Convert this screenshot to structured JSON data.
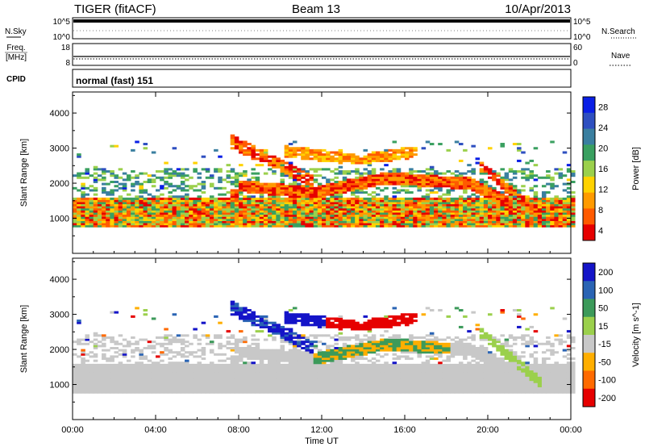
{
  "header": {
    "left": "TIGER (fitACF)",
    "center": "Beam 13",
    "right": "10/Apr/2013"
  },
  "strips": {
    "nsky_label": "N.Sky",
    "nsearch_label": "N.Search",
    "nsky_ticks": [
      "10^5",
      "10^0"
    ],
    "nsky_right_ticks": [
      "10^5",
      "10^0"
    ],
    "freq_label_1": "Freq.",
    "freq_label_2": "[MHz]",
    "freq_ticks": [
      "18",
      "8"
    ],
    "nave_label": "Nave",
    "nave_ticks": [
      "60",
      "0"
    ],
    "cpid_label": "CPID",
    "cpid_text": "normal (fast) 151"
  },
  "chart_data": [
    {
      "type": "heatmap",
      "name": "power",
      "xlabel": "Time UT",
      "ylabel": "Slant Range [km]",
      "ylim": [
        0,
        4600
      ],
      "yticks": [
        "1000",
        "2000",
        "3000",
        "4000"
      ],
      "xticks": [
        "00:00",
        "04:00",
        "08:00",
        "12:00",
        "16:00",
        "20:00",
        "00:00"
      ],
      "xlim_hours": [
        0,
        24
      ],
      "colorbar": {
        "label": "Power [dB]",
        "ticks": [
          "28",
          "24",
          "20",
          "16",
          "12",
          "8",
          "4"
        ],
        "range": [
          0,
          30
        ],
        "colors": [
          "#0a1fe6",
          "#2e4fc0",
          "#3a7fa0",
          "#3aa060",
          "#9bd04c",
          "#ffd200",
          "#ff9a00",
          "#ff5a00",
          "#e60000"
        ]
      },
      "features": [
        {
          "desc": "main band",
          "t0": 0,
          "t1": 24,
          "range_km": [
            800,
            1500
          ]
        },
        {
          "desc": "descending-ascending arc",
          "t0": 7.5,
          "t1": 20.5,
          "range_km": [
            1500,
            2100
          ]
        },
        {
          "desc": "upper arc",
          "t0": 10,
          "t1": 16.5,
          "range_km": [
            2500,
            3000
          ]
        },
        {
          "desc": "dusk streak",
          "t0": 19.5,
          "t1": 22,
          "range_km": [
            1000,
            2500
          ]
        }
      ]
    },
    {
      "type": "heatmap",
      "name": "velocity",
      "xlabel": "Time UT",
      "ylabel": "Slant Range [km]",
      "ylim": [
        0,
        4600
      ],
      "yticks": [
        "1000",
        "2000",
        "3000",
        "4000"
      ],
      "xticks": [
        "00:00",
        "04:00",
        "08:00",
        "12:00",
        "16:00",
        "20:00",
        "00:00"
      ],
      "xlim_hours": [
        0,
        24
      ],
      "colorbar": {
        "label": "Velocity [m s^-1]",
        "ticks": [
          "200",
          "100",
          "50",
          "15",
          "-15",
          "-50",
          "-100",
          "-200"
        ],
        "colors": [
          "#1414c8",
          "#2a64b4",
          "#3c9a5a",
          "#9bd04c",
          "#c8c8c8",
          "#ffae00",
          "#ff6a00",
          "#e60000"
        ]
      },
      "features": [
        {
          "desc": "ground scatter band",
          "t0": 0,
          "t1": 24,
          "range_km": [
            900,
            1500
          ],
          "v": 0
        },
        {
          "desc": "positive velocity arc",
          "t0": 8,
          "t1": 12,
          "range_km": [
            1900,
            3200
          ],
          "v": 150
        },
        {
          "desc": "negative velocity arc",
          "t0": 12,
          "t1": 16.5,
          "range_km": [
            2700,
            3100
          ],
          "v": -180
        },
        {
          "desc": "mixed band",
          "t0": 11.5,
          "t1": 18,
          "range_km": [
            1400,
            1800
          ],
          "v": -60
        }
      ]
    }
  ],
  "colors": {
    "frame": "#000000",
    "background": "#ffffff"
  }
}
